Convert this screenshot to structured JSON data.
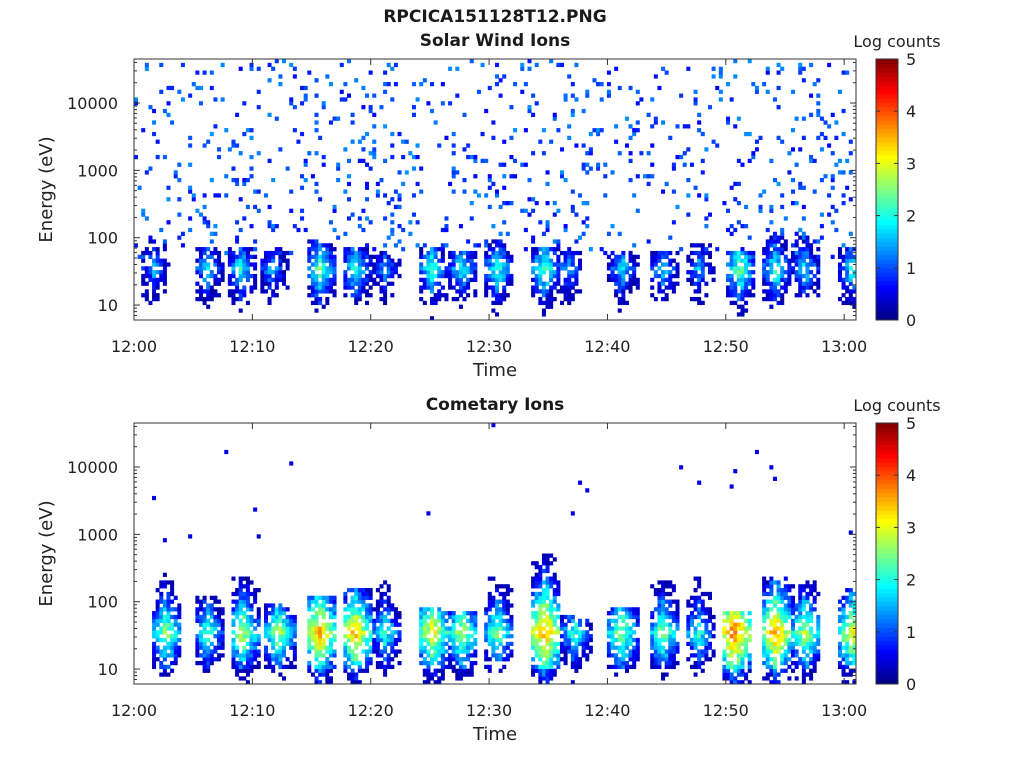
{
  "title": "RPCICA151128T12.PNG",
  "colors": {
    "colormap": "jet",
    "axis": "#333333",
    "low": "#00008f",
    "high": "#800000"
  },
  "chart_data": [
    {
      "type": "heatmap",
      "title": "Solar Wind Ions",
      "xlabel": "Time",
      "ylabel": "Energy (eV)",
      "x_ticks": [
        "12:00",
        "12:10",
        "12:20",
        "12:30",
        "12:40",
        "12:50",
        "13:00"
      ],
      "x_range_minutes": [
        0,
        61
      ],
      "y_scale": "log",
      "y_ticks": [
        10,
        100,
        1000,
        10000
      ],
      "y_tick_labels": [
        "10",
        "100",
        "1000",
        "10000"
      ],
      "y_range": [
        6,
        45000
      ],
      "colorbar": {
        "label": "Log counts",
        "range": [
          0,
          5
        ],
        "ticks": [
          "0",
          "1",
          "2",
          "3",
          "4",
          "5"
        ]
      },
      "bursts": [
        {
          "t": 1.5,
          "peak": 1.6,
          "top": 90
        },
        {
          "t": 6.0,
          "peak": 1.9,
          "top": 70
        },
        {
          "t": 8.8,
          "peak": 2.0,
          "top": 70
        },
        {
          "t": 11.5,
          "peak": 1.7,
          "top": 70
        },
        {
          "t": 15.5,
          "peak": 2.4,
          "top": 90
        },
        {
          "t": 18.5,
          "peak": 2.2,
          "top": 70
        },
        {
          "t": 21.0,
          "peak": 1.5,
          "top": 60
        },
        {
          "t": 25.0,
          "peak": 2.2,
          "top": 70
        },
        {
          "t": 27.5,
          "peak": 2.0,
          "top": 60
        },
        {
          "t": 30.5,
          "peak": 2.2,
          "top": 100
        },
        {
          "t": 34.5,
          "peak": 2.3,
          "top": 70
        },
        {
          "t": 36.5,
          "peak": 1.6,
          "top": 60
        },
        {
          "t": 41.0,
          "peak": 1.9,
          "top": 60
        },
        {
          "t": 44.5,
          "peak": 1.8,
          "top": 60
        },
        {
          "t": 47.5,
          "peak": 1.6,
          "top": 80
        },
        {
          "t": 51.0,
          "peak": 2.5,
          "top": 60
        },
        {
          "t": 54.0,
          "peak": 2.2,
          "top": 120
        },
        {
          "t": 56.5,
          "peak": 1.9,
          "top": 110
        },
        {
          "t": 60.5,
          "peak": 2.0,
          "top": 70
        }
      ]
    },
    {
      "type": "heatmap",
      "title": "Cometary Ions",
      "xlabel": "Time",
      "ylabel": "Energy (eV)",
      "x_ticks": [
        "12:00",
        "12:10",
        "12:20",
        "12:30",
        "12:40",
        "12:50",
        "13:00"
      ],
      "x_range_minutes": [
        0,
        61
      ],
      "y_scale": "log",
      "y_ticks": [
        10,
        100,
        1000,
        10000
      ],
      "y_tick_labels": [
        "10",
        "100",
        "1000",
        "10000"
      ],
      "y_range": [
        6,
        45000
      ],
      "colorbar": {
        "label": "Log counts",
        "range": [
          0,
          5
        ],
        "ticks": [
          "0",
          "1",
          "2",
          "3",
          "4",
          "5"
        ]
      },
      "bursts": [
        {
          "t": 2.5,
          "peak": 2.7,
          "top": 300
        },
        {
          "t": 6.0,
          "peak": 2.4,
          "top": 120
        },
        {
          "t": 9.0,
          "peak": 2.9,
          "top": 250
        },
        {
          "t": 12.0,
          "peak": 2.8,
          "top": 100
        },
        {
          "t": 15.5,
          "peak": 3.6,
          "top": 120
        },
        {
          "t": 18.5,
          "peak": 3.5,
          "top": 150
        },
        {
          "t": 21.0,
          "peak": 2.2,
          "top": 200
        },
        {
          "t": 25.0,
          "peak": 3.3,
          "top": 80
        },
        {
          "t": 27.5,
          "peak": 2.9,
          "top": 70
        },
        {
          "t": 30.5,
          "peak": 2.6,
          "top": 250
        },
        {
          "t": 34.5,
          "peak": 3.8,
          "top": 500
        },
        {
          "t": 37.0,
          "peak": 2.2,
          "top": 60
        },
        {
          "t": 41.0,
          "peak": 2.8,
          "top": 80
        },
        {
          "t": 44.5,
          "peak": 2.7,
          "top": 200
        },
        {
          "t": 47.5,
          "peak": 2.2,
          "top": 300
        },
        {
          "t": 50.5,
          "peak": 4.0,
          "top": 70
        },
        {
          "t": 54.0,
          "peak": 3.7,
          "top": 250
        },
        {
          "t": 56.5,
          "peak": 2.9,
          "top": 200
        },
        {
          "t": 60.5,
          "peak": 3.2,
          "top": 150
        }
      ]
    }
  ]
}
